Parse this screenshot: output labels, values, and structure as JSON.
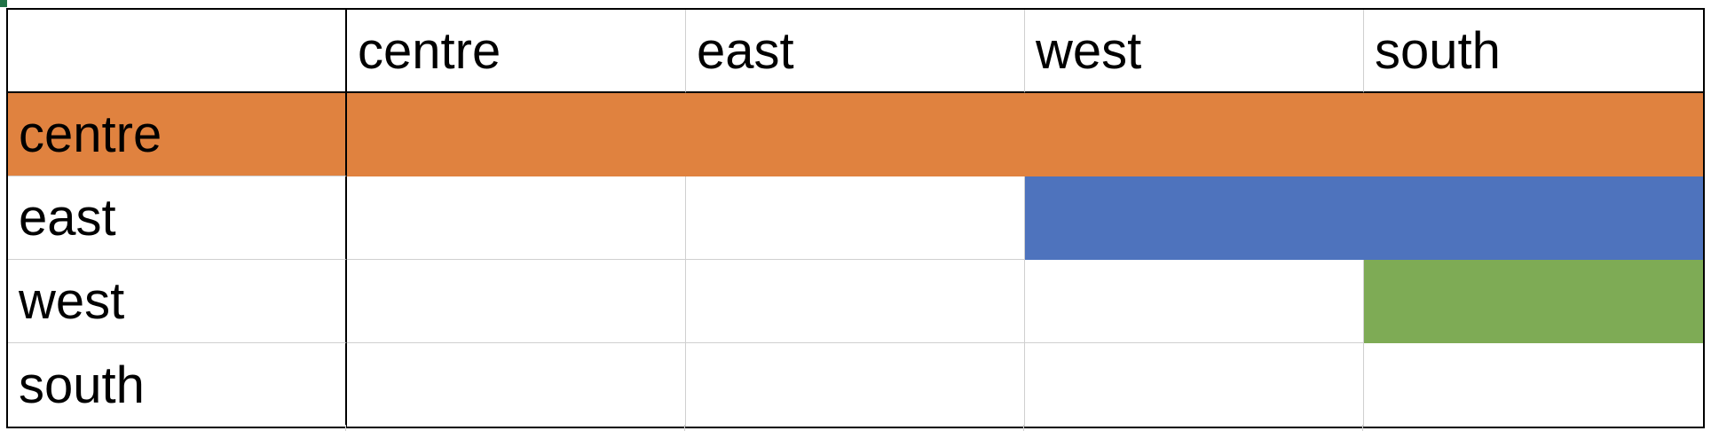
{
  "colors": {
    "centre_fill": "#E0823F",
    "east_fill": "#4E73BD",
    "west_fill": "#7EAB55",
    "grid_line": "#D0D0D0",
    "border": "#000000",
    "selection_marker": "#217346"
  },
  "table": {
    "column_headers": [
      "centre",
      "east",
      "west",
      "south"
    ],
    "rows": [
      {
        "label": "centre",
        "cells": [
          "",
          "",
          "",
          ""
        ],
        "fill_from_col": 0,
        "fill_color_key": "centre_fill"
      },
      {
        "label": "east",
        "cells": [
          "",
          "",
          "",
          ""
        ],
        "fill_from_col": 2,
        "fill_color_key": "east_fill"
      },
      {
        "label": "west",
        "cells": [
          "",
          "",
          "",
          ""
        ],
        "fill_from_col": 3,
        "fill_color_key": "west_fill"
      },
      {
        "label": "south",
        "cells": [
          "",
          "",
          "",
          ""
        ],
        "fill_from_col": null,
        "fill_color_key": null
      }
    ]
  }
}
